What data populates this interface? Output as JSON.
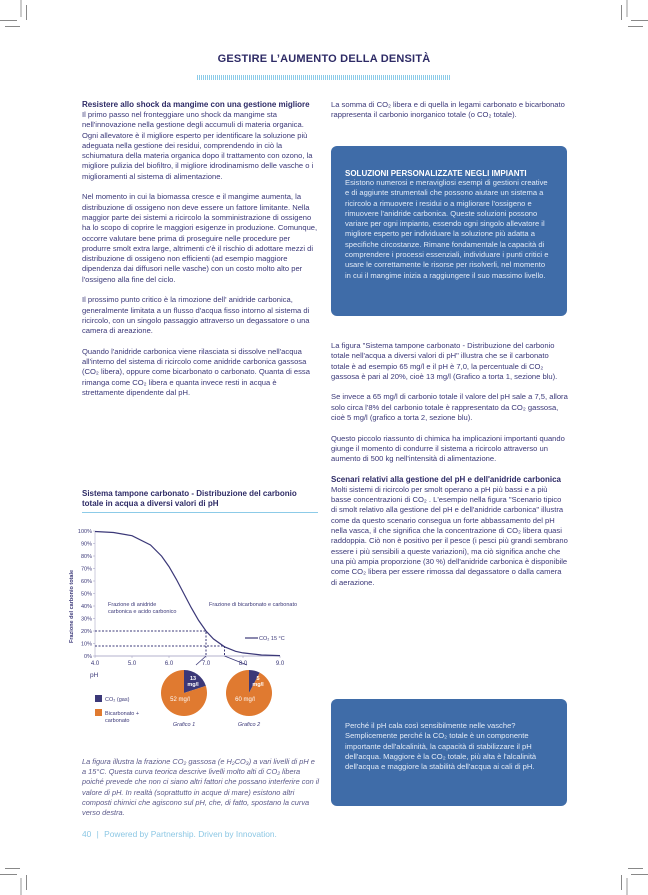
{
  "header": {
    "title": "GESTIRE L’AUMENTO DELLA DENSITÀ"
  },
  "left": {
    "heading1": "Resistere allo shock da mangime con una gestione migliore",
    "p1": "Il primo passo nel fronteggiare uno shock da mangime sta nell'innovazione nella gestione degli accumuli di materia organica. Ogni allevatore è il migliore esperto per identificare la soluzione più adeguata nella gestione dei residui, comprendendo in ciò la schiumatura della materia organica dopo il trattamento con ozono, la migliore pulizia del biofiltro, il migliore idrodinamismo delle vasche o i miglioramenti al sistema di alimentazione.",
    "p2": "Nel momento in cui la biomassa cresce e il mangime aumenta, la distribuzione di ossigeno non deve essere un fattore limitante. Nella maggior parte dei sistemi a ricircolo la somministrazione di ossigeno ha lo scopo di coprire le maggiori esigenze in produzione. Comunque, occorre valutare bene prima di proseguire nelle procedure per produrre smolt extra large, altrimenti c'è il rischio di adottare mezzi di distribuzione di ossigeno non efficienti (ad esempio maggiore dipendenza dai diffusori nelle vasche) con un costo molto alto per l'ossigeno alla fine del ciclo.",
    "p3": "Il prossimo punto critico è la rimozione dell' anidride carbonica, generalmente limitata a un flusso d'acqua fisso intorno al sistema di ricircolo, con un singolo passaggio attraverso un degassatore o una camera di areazione.",
    "p4": "Quando l'anidride carbonica viene rilasciata si dissolve nell'acqua all'interno del sistema di ricircolo come anidride carbonica gassosa (CO₂ libera), oppure come bicarbonato o carbonato. Quanta di essa rimanga come CO₂ libera e quanta invece resti in acqua è strettamente dipendente dal pH.",
    "chart_title": "Sistema tampone carbonato - Distribuzione del carbonio totale in acqua a diversi valori di pH",
    "caption": "La figura illustra la frazione CO₂ gassosa (e H₂CO₃) a vari livelli di pH e a 15°C. Questa curva teorica descrive livelli molto alti di CO₂ libera poiché prevede che non ci siano altri fattori che possano interferire con il valore di pH. In realtà (soprattutto in acque di mare) esistono altri composti chimici che agiscono sul pH, che, di fatto, spostano la curva verso destra."
  },
  "right": {
    "p1": "La somma di CO₂ libera e di quella in legami carbonato e bicarbonato rappresenta il carbonio inorganico totale (o CO₂ totale).",
    "box1": {
      "title": "SOLUZIONI PERSONALIZZATE NEGLI IMPIANTI",
      "body": "Esistono numerosi e meravigliosi esempi di gestioni creative e di aggiunte strumentali che possono aiutare un sistema a ricircolo a rimuovere i residui o a migliorare l'ossigeno e rimuovere l'anidride carbonica. Queste soluzioni possono variare per ogni impianto, essendo ogni singolo allevatore il migliore esperto per individuare la soluzione più adatta a specifiche circostanze. Rimane fondamentale la capacità di comprendere i processi essenziali, individuare i punti critici e usare le correttamente le risorse per risolverli, nel momento in cui il mangime inizia a raggiungere il suo massimo livello."
    },
    "p2": "La figura \"Sistema tampone carbonato - Distribuzione del carbonio totale nell'acqua a diversi valori di pH\" illustra che se il carbonato totale è ad esempio 65 mg/l e il pH è 7,0, la percentuale di CO₂ gassosa è pari al 20%, cioè 13 mg/l (Grafico a torta 1, sezione blu).",
    "p3": "Se invece a 65 mg/l di carbonio totale il valore del pH sale a 7,5, allora solo circa l'8% del carbonio totale è rappresentato da CO₂ gassosa, cioè 5 mg/l (grafico a torta 2, sezione blu).",
    "p4": "Questo piccolo riassunto di chimica ha implicazioni importanti quando giunge il momento di condurre il sistema a ricircolo attraverso un aumento di 500 kg nell'intensità di alimentazione.",
    "heading2": "Scenari relativi alla gestione del pH e dell'anidride carbonica",
    "p5": "Molti sistemi di ricircolo per smolt operano a pH più bassi e a più basse concentrazioni di CO₂ . L'esempio nella figura \"Scenario tipico di smolt relativo alla gestione del pH e dell'anidride carbonica\" illustra come da questo scenario consegua un forte abbassamento del pH nella vasca, il che significa che la concentrazione di CO₂ libera quasi raddoppia. Ciò non è positivo per il pesce (i pesci più grandi sembrano essere i più sensibili a queste variazioni), ma ciò significa anche che una più ampia proporzione (30 %) dell'anidride carbonica è disponibile come CO₂ libera per essere rimossa dal degassatore o dalla camera di aerazione.",
    "box2": {
      "body": "Perché il pH cala così sensibilmente nelle vasche? Semplicemente perché la CO₂ totale è un componente importante dell'alcalinità, la capacità di stabilizzare il pH dell'acqua. Maggiore è la CO₂ totale, più alta è l'alcalinità dell'acqua e maggiore la stabilità dell'acqua ai cali di pH."
    }
  },
  "footer": {
    "page": "40",
    "separator": "|",
    "tagline": "Powered by Partnership. Driven by Innovation."
  },
  "colors": {
    "navy": "#3b3878",
    "orange": "#e07a30",
    "box_blue": "#3f6ca8",
    "footer_blue": "#8cc7e4"
  },
  "chart_data": {
    "type": "line",
    "xlabel": "pH",
    "ylabel": "Frazione del carbonio totale",
    "xlim": [
      4.0,
      9.0
    ],
    "ylim": [
      0,
      100
    ],
    "x_ticks": [
      "4.0",
      "5.0",
      "6.0",
      "7.0",
      "8.0",
      "9.0"
    ],
    "y_ticks": [
      "0%",
      "10%",
      "20%",
      "30%",
      "40%",
      "50%",
      "60%",
      "70%",
      "80%",
      "90%",
      "100%"
    ],
    "series": [
      {
        "name": "CO₂ 15 °C",
        "x": [
          4.0,
          4.5,
          5.0,
          5.5,
          5.8,
          6.0,
          6.2,
          6.4,
          6.6,
          6.8,
          7.0,
          7.2,
          7.5,
          7.8,
          8.0,
          8.5,
          9.0
        ],
        "y": [
          99.6,
          98.8,
          96.2,
          88.8,
          79.9,
          71.5,
          61.3,
          50,
          38.7,
          28.5,
          20,
          13.7,
          7.4,
          3.8,
          2.5,
          0.8,
          0.3
        ]
      }
    ],
    "annotations": {
      "left_region": "Frazione di anidride carbonica e acido carbonico",
      "right_region": "Frazione di bicarbonato e carbonato"
    },
    "markers": [
      {
        "pH": 7.0,
        "percent": 20
      },
      {
        "pH": 7.5,
        "percent": 8
      }
    ],
    "pies": [
      {
        "label": "Grafico 1",
        "slices": [
          {
            "name": "CO₂ (gas)",
            "value": 13,
            "text": "13 mg/l"
          },
          {
            "name": "Bicarbonato + carbonato",
            "value": 52,
            "text": "52 mg/l"
          }
        ]
      },
      {
        "label": "Grafico 2",
        "slices": [
          {
            "name": "CO₂ (gas)",
            "value": 5,
            "text": "5 mg/l"
          },
          {
            "name": "Bicarbonato + carbonato",
            "value": 60,
            "text": "60 mg/l"
          }
        ]
      }
    ],
    "legend": [
      "CO₂ (gas)",
      "Bicarbonato + carbonato"
    ],
    "legend_placement": "bottom-left"
  }
}
